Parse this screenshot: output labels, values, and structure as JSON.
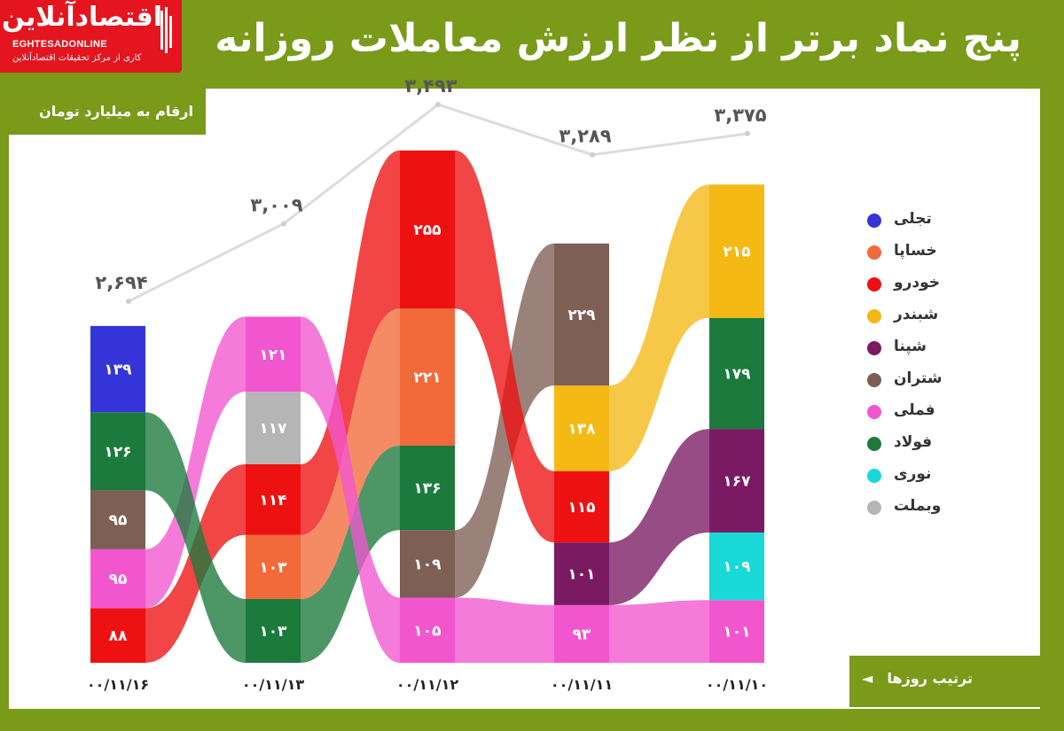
{
  "header": {
    "title": "پنج نماد برتر از نظر ارزش معاملات روزانه"
  },
  "logo": {
    "name_fa": "اقتصادآنلاین",
    "name_en": "EGHTESADONLINE",
    "tagline": "کاری از مرکز تحقیقات اقتصادآنلاین"
  },
  "unit_note": "ارقام به میلیارد تومان",
  "order_note": "ترتیب روزها",
  "order_arrow": "◄",
  "colors": {
    "frame": "#7a9a1a",
    "logo": "#e4151f",
    "total_line": "#dcdcdc"
  },
  "chart_data": {
    "type": "bar",
    "stacked": true,
    "columns": [
      {
        "date": "۰۰/۱۱/۱۶",
        "total": "۲,۶۹۴",
        "segments": [
          {
            "symbol": "خودرو",
            "value": 88,
            "label": "۸۸"
          },
          {
            "symbol": "فملی",
            "value": 95,
            "label": "۹۵"
          },
          {
            "symbol": "شتران",
            "value": 95,
            "label": "۹۵"
          },
          {
            "symbol": "فولاد",
            "value": 126,
            "label": "۱۲۶"
          },
          {
            "symbol": "تجلی",
            "value": 139,
            "label": "۱۳۹"
          }
        ]
      },
      {
        "date": "۰۰/۱۱/۱۳",
        "total": "۳,۰۰۹",
        "segments": [
          {
            "symbol": "فولاد",
            "value": 103,
            "label": "۱۰۳"
          },
          {
            "symbol": "خساپا",
            "value": 103,
            "label": "۱۰۳"
          },
          {
            "symbol": "خودرو",
            "value": 114,
            "label": "۱۱۴"
          },
          {
            "symbol": "وبملت",
            "value": 117,
            "label": "۱۱۷"
          },
          {
            "symbol": "فملی",
            "value": 121,
            "label": "۱۲۱"
          }
        ]
      },
      {
        "date": "۰۰/۱۱/۱۲",
        "total": "۳,۴۹۳",
        "segments": [
          {
            "symbol": "فملی",
            "value": 105,
            "label": "۱۰۵"
          },
          {
            "symbol": "شتران",
            "value": 109,
            "label": "۱۰۹"
          },
          {
            "symbol": "فولاد",
            "value": 136,
            "label": "۱۳۶"
          },
          {
            "symbol": "خساپا",
            "value": 221,
            "label": "۲۲۱"
          },
          {
            "symbol": "خودرو",
            "value": 255,
            "label": "۲۵۵"
          }
        ]
      },
      {
        "date": "۰۰/۱۱/۱۱",
        "total": "۳,۲۸۹",
        "segments": [
          {
            "symbol": "فملی",
            "value": 93,
            "label": "۹۳"
          },
          {
            "symbol": "شپنا",
            "value": 101,
            "label": "۱۰۱"
          },
          {
            "symbol": "خودرو",
            "value": 115,
            "label": "۱۱۵"
          },
          {
            "symbol": "شبندر",
            "value": 138,
            "label": "۱۳۸"
          },
          {
            "symbol": "شتران",
            "value": 229,
            "label": "۲۲۹"
          }
        ]
      },
      {
        "date": "۰۰/۱۱/۱۰",
        "total": "۳,۳۷۵",
        "segments": [
          {
            "symbol": "فملی",
            "value": 101,
            "label": "۱۰۱"
          },
          {
            "symbol": "نوری",
            "value": 109,
            "label": "۱۰۹"
          },
          {
            "symbol": "شپنا",
            "value": 167,
            "label": "۱۶۷"
          },
          {
            "symbol": "فولاد",
            "value": 179,
            "label": "۱۷۹"
          },
          {
            "symbol": "شبندر",
            "value": 215,
            "label": "۲۱۵"
          }
        ]
      }
    ],
    "totals_values": [
      2694,
      3009,
      3493,
      3289,
      3375
    ],
    "legend": [
      {
        "symbol": "تجلی",
        "color": "#3434d8"
      },
      {
        "symbol": "خساپا",
        "color": "#f26a3a"
      },
      {
        "symbol": "خودرو",
        "color": "#ee1111"
      },
      {
        "symbol": "شبندر",
        "color": "#f5b915"
      },
      {
        "symbol": "شپنا",
        "color": "#7a1a63"
      },
      {
        "symbol": "شتران",
        "color": "#7d5f55"
      },
      {
        "symbol": "فملی",
        "color": "#f256cf"
      },
      {
        "symbol": "فولاد",
        "color": "#1b7a3c"
      },
      {
        "symbol": "نوری",
        "color": "#18d8d8"
      },
      {
        "symbol": "وبملت",
        "color": "#b5b5b5"
      }
    ]
  }
}
